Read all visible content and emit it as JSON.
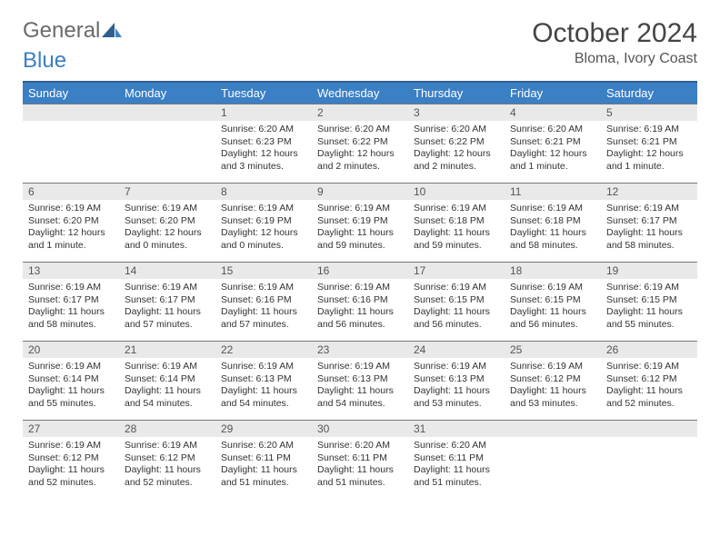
{
  "brand": {
    "part1": "General",
    "part2": "Blue"
  },
  "title": "October 2024",
  "location": "Bloma, Ivory Coast",
  "colors": {
    "header_bg": "#3b7fc4",
    "header_border": "#2f5f8f",
    "daynum_bg": "#e9e9e9",
    "text": "#333333"
  },
  "dow": [
    "Sunday",
    "Monday",
    "Tuesday",
    "Wednesday",
    "Thursday",
    "Friday",
    "Saturday"
  ],
  "weeks": [
    {
      "nums": [
        "",
        "",
        "1",
        "2",
        "3",
        "4",
        "5"
      ],
      "cells": [
        null,
        null,
        {
          "sr": "Sunrise: 6:20 AM",
          "ss": "Sunset: 6:23 PM",
          "dl": "Daylight: 12 hours and 3 minutes."
        },
        {
          "sr": "Sunrise: 6:20 AM",
          "ss": "Sunset: 6:22 PM",
          "dl": "Daylight: 12 hours and 2 minutes."
        },
        {
          "sr": "Sunrise: 6:20 AM",
          "ss": "Sunset: 6:22 PM",
          "dl": "Daylight: 12 hours and 2 minutes."
        },
        {
          "sr": "Sunrise: 6:20 AM",
          "ss": "Sunset: 6:21 PM",
          "dl": "Daylight: 12 hours and 1 minute."
        },
        {
          "sr": "Sunrise: 6:19 AM",
          "ss": "Sunset: 6:21 PM",
          "dl": "Daylight: 12 hours and 1 minute."
        }
      ]
    },
    {
      "nums": [
        "6",
        "7",
        "8",
        "9",
        "10",
        "11",
        "12"
      ],
      "cells": [
        {
          "sr": "Sunrise: 6:19 AM",
          "ss": "Sunset: 6:20 PM",
          "dl": "Daylight: 12 hours and 1 minute."
        },
        {
          "sr": "Sunrise: 6:19 AM",
          "ss": "Sunset: 6:20 PM",
          "dl": "Daylight: 12 hours and 0 minutes."
        },
        {
          "sr": "Sunrise: 6:19 AM",
          "ss": "Sunset: 6:19 PM",
          "dl": "Daylight: 12 hours and 0 minutes."
        },
        {
          "sr": "Sunrise: 6:19 AM",
          "ss": "Sunset: 6:19 PM",
          "dl": "Daylight: 11 hours and 59 minutes."
        },
        {
          "sr": "Sunrise: 6:19 AM",
          "ss": "Sunset: 6:18 PM",
          "dl": "Daylight: 11 hours and 59 minutes."
        },
        {
          "sr": "Sunrise: 6:19 AM",
          "ss": "Sunset: 6:18 PM",
          "dl": "Daylight: 11 hours and 58 minutes."
        },
        {
          "sr": "Sunrise: 6:19 AM",
          "ss": "Sunset: 6:17 PM",
          "dl": "Daylight: 11 hours and 58 minutes."
        }
      ]
    },
    {
      "nums": [
        "13",
        "14",
        "15",
        "16",
        "17",
        "18",
        "19"
      ],
      "cells": [
        {
          "sr": "Sunrise: 6:19 AM",
          "ss": "Sunset: 6:17 PM",
          "dl": "Daylight: 11 hours and 58 minutes."
        },
        {
          "sr": "Sunrise: 6:19 AM",
          "ss": "Sunset: 6:17 PM",
          "dl": "Daylight: 11 hours and 57 minutes."
        },
        {
          "sr": "Sunrise: 6:19 AM",
          "ss": "Sunset: 6:16 PM",
          "dl": "Daylight: 11 hours and 57 minutes."
        },
        {
          "sr": "Sunrise: 6:19 AM",
          "ss": "Sunset: 6:16 PM",
          "dl": "Daylight: 11 hours and 56 minutes."
        },
        {
          "sr": "Sunrise: 6:19 AM",
          "ss": "Sunset: 6:15 PM",
          "dl": "Daylight: 11 hours and 56 minutes."
        },
        {
          "sr": "Sunrise: 6:19 AM",
          "ss": "Sunset: 6:15 PM",
          "dl": "Daylight: 11 hours and 56 minutes."
        },
        {
          "sr": "Sunrise: 6:19 AM",
          "ss": "Sunset: 6:15 PM",
          "dl": "Daylight: 11 hours and 55 minutes."
        }
      ]
    },
    {
      "nums": [
        "20",
        "21",
        "22",
        "23",
        "24",
        "25",
        "26"
      ],
      "cells": [
        {
          "sr": "Sunrise: 6:19 AM",
          "ss": "Sunset: 6:14 PM",
          "dl": "Daylight: 11 hours and 55 minutes."
        },
        {
          "sr": "Sunrise: 6:19 AM",
          "ss": "Sunset: 6:14 PM",
          "dl": "Daylight: 11 hours and 54 minutes."
        },
        {
          "sr": "Sunrise: 6:19 AM",
          "ss": "Sunset: 6:13 PM",
          "dl": "Daylight: 11 hours and 54 minutes."
        },
        {
          "sr": "Sunrise: 6:19 AM",
          "ss": "Sunset: 6:13 PM",
          "dl": "Daylight: 11 hours and 54 minutes."
        },
        {
          "sr": "Sunrise: 6:19 AM",
          "ss": "Sunset: 6:13 PM",
          "dl": "Daylight: 11 hours and 53 minutes."
        },
        {
          "sr": "Sunrise: 6:19 AM",
          "ss": "Sunset: 6:12 PM",
          "dl": "Daylight: 11 hours and 53 minutes."
        },
        {
          "sr": "Sunrise: 6:19 AM",
          "ss": "Sunset: 6:12 PM",
          "dl": "Daylight: 11 hours and 52 minutes."
        }
      ]
    },
    {
      "nums": [
        "27",
        "28",
        "29",
        "30",
        "31",
        "",
        ""
      ],
      "cells": [
        {
          "sr": "Sunrise: 6:19 AM",
          "ss": "Sunset: 6:12 PM",
          "dl": "Daylight: 11 hours and 52 minutes."
        },
        {
          "sr": "Sunrise: 6:19 AM",
          "ss": "Sunset: 6:12 PM",
          "dl": "Daylight: 11 hours and 52 minutes."
        },
        {
          "sr": "Sunrise: 6:20 AM",
          "ss": "Sunset: 6:11 PM",
          "dl": "Daylight: 11 hours and 51 minutes."
        },
        {
          "sr": "Sunrise: 6:20 AM",
          "ss": "Sunset: 6:11 PM",
          "dl": "Daylight: 11 hours and 51 minutes."
        },
        {
          "sr": "Sunrise: 6:20 AM",
          "ss": "Sunset: 6:11 PM",
          "dl": "Daylight: 11 hours and 51 minutes."
        },
        null,
        null
      ]
    }
  ]
}
